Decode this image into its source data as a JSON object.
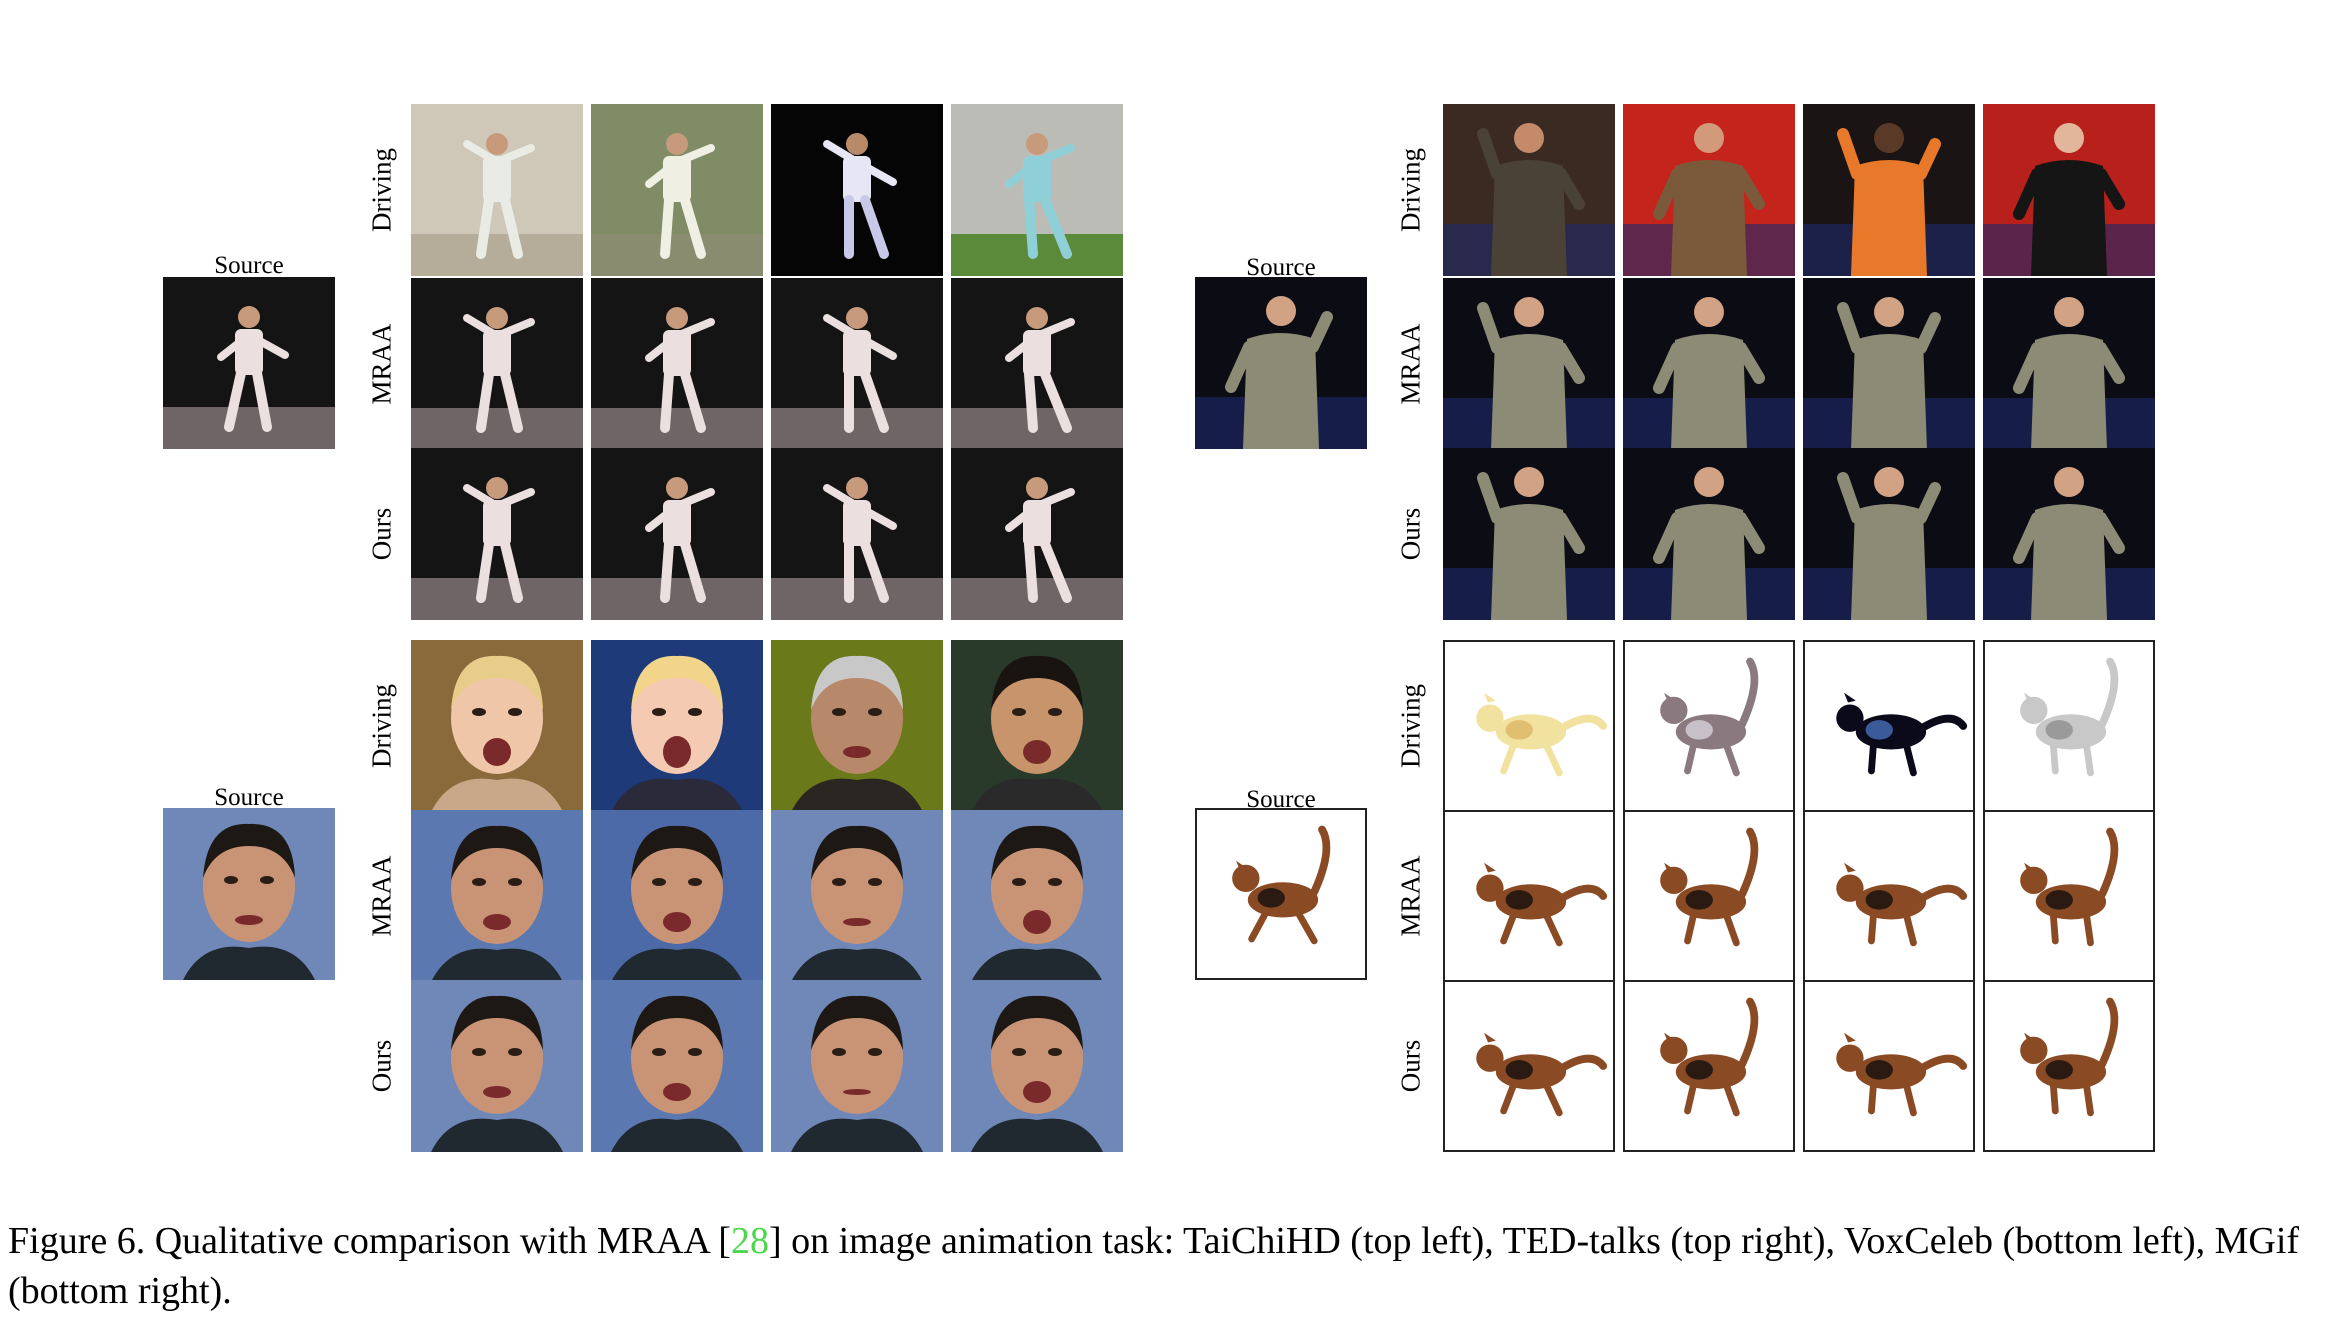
{
  "labels": {
    "source": "Source",
    "rows": [
      "Driving",
      "MRAA",
      "Ours"
    ]
  },
  "panels": [
    {
      "id": "taichi",
      "framed": false
    },
    {
      "id": "ted",
      "framed": false
    },
    {
      "id": "vox",
      "framed": false
    },
    {
      "id": "mgif",
      "framed": true
    }
  ],
  "caption": {
    "prefix": "Figure 6. Qualitative comparison with MRAA [",
    "ref": "28",
    "suffix": "] on image animation task: TaiChiHD (top left), TED-talks (top right), VoxCeleb (bottom left), MGif (bottom right)."
  },
  "colors": {
    "reference_link": "#4cd64c"
  }
}
